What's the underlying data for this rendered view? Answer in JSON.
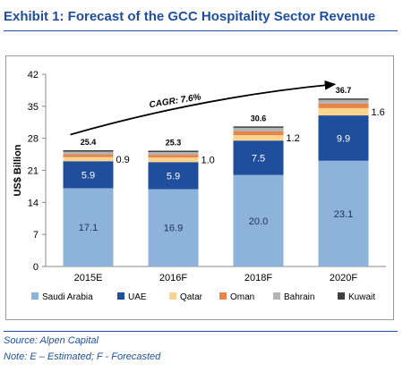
{
  "page": {
    "title": "Exhibit 1:  Forecast of the GCC Hospitality Sector Revenue",
    "source": "Source:  Alpen Capital",
    "note": "Note: E – Estimated; F - Forecasted",
    "title_color": "#1f4e9c"
  },
  "chart_data": {
    "type": "bar",
    "stacked": true,
    "title": "",
    "xlabel": "",
    "ylabel": "US$ Billion",
    "ylim": [
      0,
      42
    ],
    "yticks": [
      0,
      7,
      14,
      21,
      28,
      35,
      42
    ],
    "categories": [
      "2015E",
      "2016F",
      "2018F",
      "2020F"
    ],
    "series": [
      {
        "name": "Saudi Arabia",
        "color": "#8db3da",
        "values": [
          17.1,
          16.9,
          20.0,
          23.1
        ],
        "labels": [
          "17.1",
          "16.9",
          "20.0",
          "23.1"
        ]
      },
      {
        "name": "UAE",
        "color": "#1f4e9c",
        "values": [
          5.9,
          5.9,
          7.5,
          9.9
        ],
        "labels": [
          "5.9",
          "5.9",
          "7.5",
          "9.9"
        ]
      },
      {
        "name": "Qatar",
        "color": "#fbd38c",
        "values": [
          0.9,
          1.0,
          1.2,
          1.6
        ],
        "labels": [
          "0.9",
          "1.0",
          "1.2",
          "1.6"
        ]
      },
      {
        "name": "Oman",
        "color": "#e8834a",
        "values": [
          0.6,
          0.6,
          0.8,
          1.0
        ],
        "labels": [
          "",
          "",
          "",
          ""
        ]
      },
      {
        "name": "Bahrain",
        "color": "#b3b3b3",
        "values": [
          0.6,
          0.6,
          0.8,
          0.8
        ],
        "labels": [
          "",
          "",
          "",
          ""
        ]
      },
      {
        "name": "Kuwait",
        "color": "#404040",
        "values": [
          0.3,
          0.3,
          0.3,
          0.3
        ],
        "labels": [
          "",
          "",
          "",
          ""
        ]
      }
    ],
    "totals": [
      25.4,
      25.3,
      30.6,
      36.7
    ],
    "total_labels": [
      "25.4",
      "25.3",
      "30.6",
      "36.7"
    ],
    "annotation": "CAGR: 7.6%",
    "legend_position": "bottom",
    "grid": false
  }
}
